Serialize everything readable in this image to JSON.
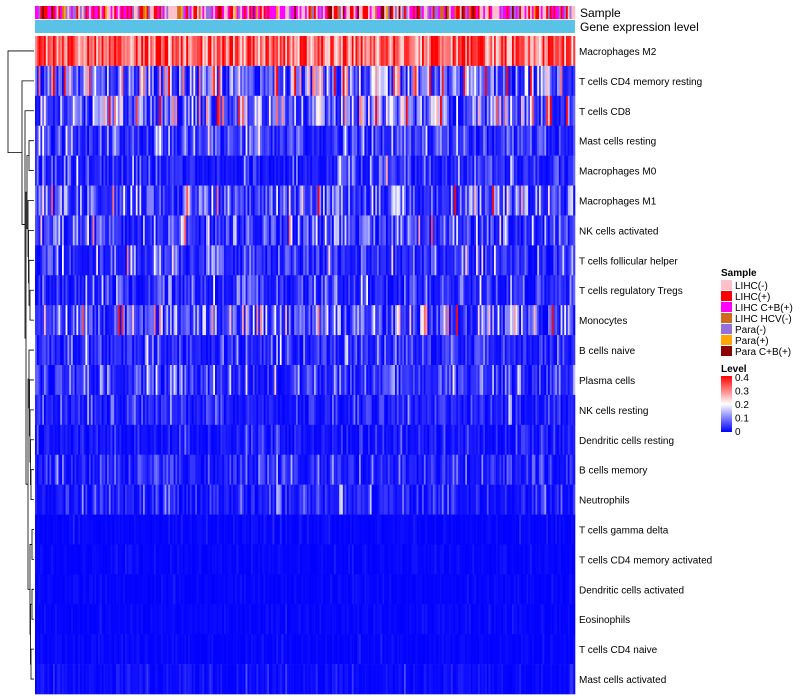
{
  "chart_data": {
    "type": "heatmap",
    "title": "",
    "annotation_tracks": [
      "Sample",
      "Gene expression level"
    ],
    "rows": [
      {
        "label": "Macrophages M2",
        "mean": 0.3
      },
      {
        "label": "T cells CD4 memory resting",
        "mean": 0.13
      },
      {
        "label": "T cells CD8",
        "mean": 0.11
      },
      {
        "label": "Mast cells resting",
        "mean": 0.05
      },
      {
        "label": "Macrophages M0",
        "mean": 0.04
      },
      {
        "label": "Macrophages M1",
        "mean": 0.07
      },
      {
        "label": "NK cells activated",
        "mean": 0.06
      },
      {
        "label": "T cells follicular helper",
        "mean": 0.05
      },
      {
        "label": "T cells regulatory  Tregs",
        "mean": 0.04
      },
      {
        "label": "Monocytes",
        "mean": 0.09
      },
      {
        "label": "B cells naive",
        "mean": 0.04
      },
      {
        "label": "Plasma cells",
        "mean": 0.05
      },
      {
        "label": "NK cells resting",
        "mean": 0.03
      },
      {
        "label": "Dendritic cells resting",
        "mean": 0.02
      },
      {
        "label": "B cells memory",
        "mean": 0.03
      },
      {
        "label": "Neutrophils",
        "mean": 0.03
      },
      {
        "label": "T cells gamma delta",
        "mean": 0.005
      },
      {
        "label": "T cells CD4 memory activated",
        "mean": 0.005
      },
      {
        "label": "Dendritic cells activated",
        "mean": 0.005
      },
      {
        "label": "Eosinophils",
        "mean": 0.005
      },
      {
        "label": "T cells CD4 naive",
        "mean": 0.005
      },
      {
        "label": "Mast cells activated",
        "mean": 0.01
      }
    ],
    "color_scale": {
      "min": 0,
      "max": 0.4,
      "stops": [
        {
          "value": 0,
          "color": "#0000ff"
        },
        {
          "value": 0.2,
          "color": "#ffffff"
        },
        {
          "value": 0.4,
          "color": "#ff0000"
        }
      ]
    },
    "legend_sample": {
      "title": "Sample",
      "items": [
        {
          "label": "LIHC(-)",
          "color": "#ffc0cb"
        },
        {
          "label": "LIHC(+)",
          "color": "#ff0000"
        },
        {
          "label": "LIHC C+B(+)",
          "color": "#ff00ff"
        },
        {
          "label": "LIHC HCV(-)",
          "color": "#d2691e"
        },
        {
          "label": "Para(-)",
          "color": "#9370db"
        },
        {
          "label": "Para(+)",
          "color": "#ffa500"
        },
        {
          "label": "Para C+B(+)",
          "color": "#8b0000"
        }
      ]
    },
    "legend_level": {
      "title": "Level",
      "ticks": [
        "0.4",
        "0.3",
        "0.2",
        "0.1",
        "0"
      ]
    },
    "sample_mix": {
      "LIHC(-)": 0.3,
      "LIHC(+)": 0.22,
      "LIHC C+B(+)": 0.24,
      "LIHC HCV(-)": 0.04,
      "Para(-)": 0.12,
      "Para(+)": 0.04,
      "Para C+B(+)": 0.04
    },
    "gene_expression_color": "#5bc2e7"
  }
}
